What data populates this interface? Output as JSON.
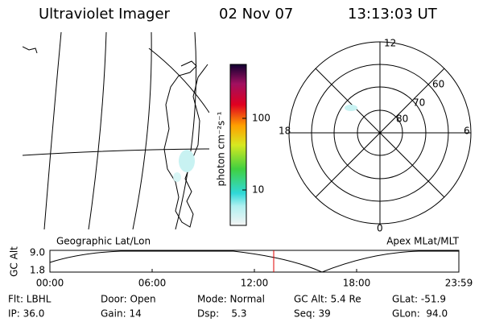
{
  "header": {
    "instrument": "Ultraviolet Imager",
    "date": "02 Nov 07",
    "time": "13:13:03 UT"
  },
  "colorbar": {
    "label": "photon cm⁻²s⁻¹",
    "ticks": [
      "100",
      "10"
    ]
  },
  "polar": {
    "mlt_labels": [
      "12",
      "18",
      "6",
      "0"
    ],
    "lat_labels": [
      "60",
      "70",
      "80"
    ]
  },
  "panels": {
    "left": "Geographic Lat/Lon",
    "right": "Apex MLat/MLT"
  },
  "orbit": {
    "ylabel": "GC Alt",
    "yticks": [
      "9.0",
      "1.8"
    ],
    "xticks": [
      "00:00",
      "06:00",
      "12:00",
      "18:00",
      "23:59"
    ]
  },
  "info": {
    "rows": [
      [
        "Flt: LBHL",
        "Door: Open",
        "Mode: Normal",
        "GC Alt: 5.4 Re",
        "GLat: -51.9"
      ],
      [
        "IP: 36.0",
        "Gain: 14",
        "Dsp:    5.3",
        "Seq: 39",
        "GLon:  94.0"
      ]
    ]
  }
}
